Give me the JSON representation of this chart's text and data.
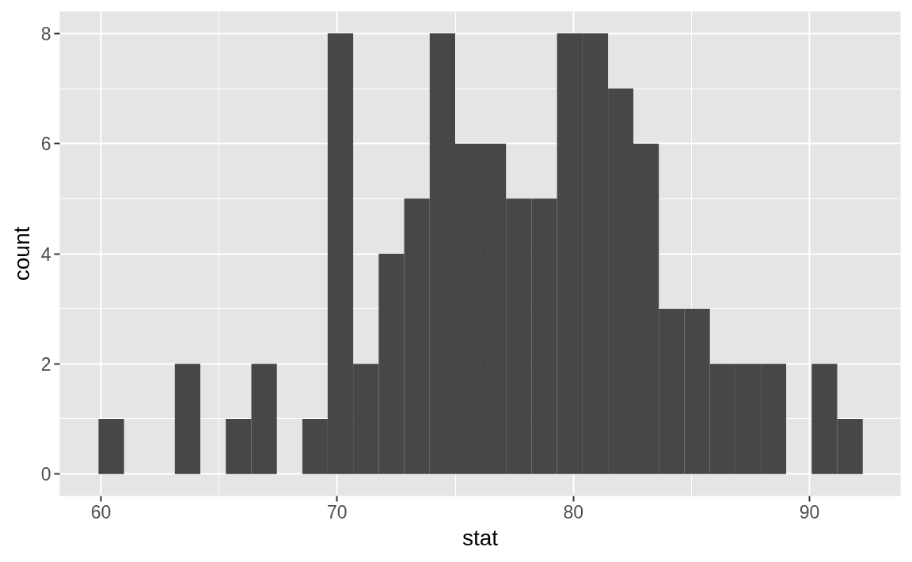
{
  "chart_data": {
    "type": "histogram",
    "xlabel": "stat",
    "ylabel": "count",
    "bins": [
      59.9,
      60.98,
      62.06,
      63.13,
      64.21,
      65.29,
      66.37,
      67.45,
      68.53,
      69.6,
      70.68,
      71.76,
      72.84,
      73.92,
      75.0,
      76.07,
      77.15,
      78.23,
      79.31,
      80.39,
      81.47,
      82.54,
      83.62,
      84.7,
      85.78,
      86.86,
      87.94,
      89.01,
      90.09,
      91.17,
      92.25
    ],
    "values": [
      1,
      0,
      0,
      2,
      0,
      1,
      2,
      0,
      1,
      8,
      2,
      4,
      5,
      8,
      6,
      6,
      5,
      5,
      8,
      8,
      7,
      6,
      3,
      3,
      2,
      2,
      2,
      0,
      2,
      1
    ],
    "color": "#474747",
    "xlim": [
      58.26,
      93.85
    ],
    "ylim": [
      -0.4,
      8.4
    ],
    "xticks": [
      60,
      70,
      80,
      90
    ],
    "yticks": [
      0,
      2,
      4,
      6,
      8
    ],
    "grid": true
  }
}
